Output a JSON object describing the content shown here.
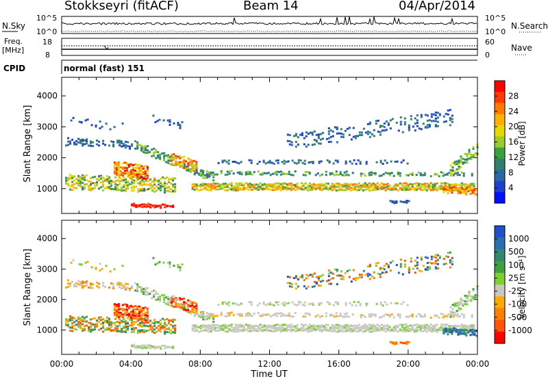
{
  "header": {
    "station": "Stokkseyri (fitACF)",
    "beam": "Beam 14",
    "date": "04/Apr/2014"
  },
  "panels": {
    "nsky": {
      "label": "N.Sky",
      "ticks_left": [
        "10^5",
        "10^0"
      ],
      "ticks_right": [
        "10^5",
        "10^0"
      ],
      "right_label": "N.Search"
    },
    "freq": {
      "label_line1": "Freq.",
      "label_line2": "[MHz]",
      "ticks_left": [
        "18",
        "8"
      ],
      "ticks_right": [
        "60",
        "0"
      ],
      "right_label": "Nave"
    },
    "cpid": {
      "label": "CPID",
      "value": "normal (fast) 151"
    }
  },
  "chart_data": [
    {
      "type": "heatmap",
      "quantity": "Power",
      "ylabel": "Slant Range [km]",
      "ylim": [
        200,
        4600
      ],
      "yticks": [
        "1000",
        "2000",
        "3000",
        "4000"
      ],
      "xlim_hours": [
        0,
        24
      ],
      "colorbar_label": "Power [dB]",
      "colorbar_ticks": [
        "28",
        "24",
        "20",
        "16",
        "12",
        "8",
        "4"
      ],
      "colorbar_colors": [
        "#ff0000",
        "#ff3a00",
        "#ff7a00",
        "#ffb000",
        "#e8d800",
        "#9ccc2a",
        "#3aa040",
        "#30806a",
        "#2a6aa0",
        "#2040d0",
        "#0010ff"
      ]
    },
    {
      "type": "heatmap",
      "quantity": "Velocity",
      "ylabel": "Slant Range [km]",
      "ylim": [
        200,
        4600
      ],
      "yticks": [
        "1000",
        "2000",
        "3000",
        "4000"
      ],
      "xlim_hours": [
        0,
        24
      ],
      "xticks": [
        "00:00",
        "04:00",
        "08:00",
        "12:00",
        "16:00",
        "20:00",
        "00:00"
      ],
      "xlabel": "Time UT",
      "colorbar_label": "Velocity [m s⁻¹]",
      "colorbar_ticks": [
        "1000",
        "500",
        "100",
        "25",
        "-25",
        "-100",
        "-500",
        "-1000"
      ],
      "colorbar_colors": [
        "#2050c8",
        "#2a70b0",
        "#2d8a6e",
        "#3fa040",
        "#7cd030",
        "#c8c8c0",
        "#ffaa00",
        "#ff8000",
        "#ff5500",
        "#ff0000"
      ]
    }
  ]
}
